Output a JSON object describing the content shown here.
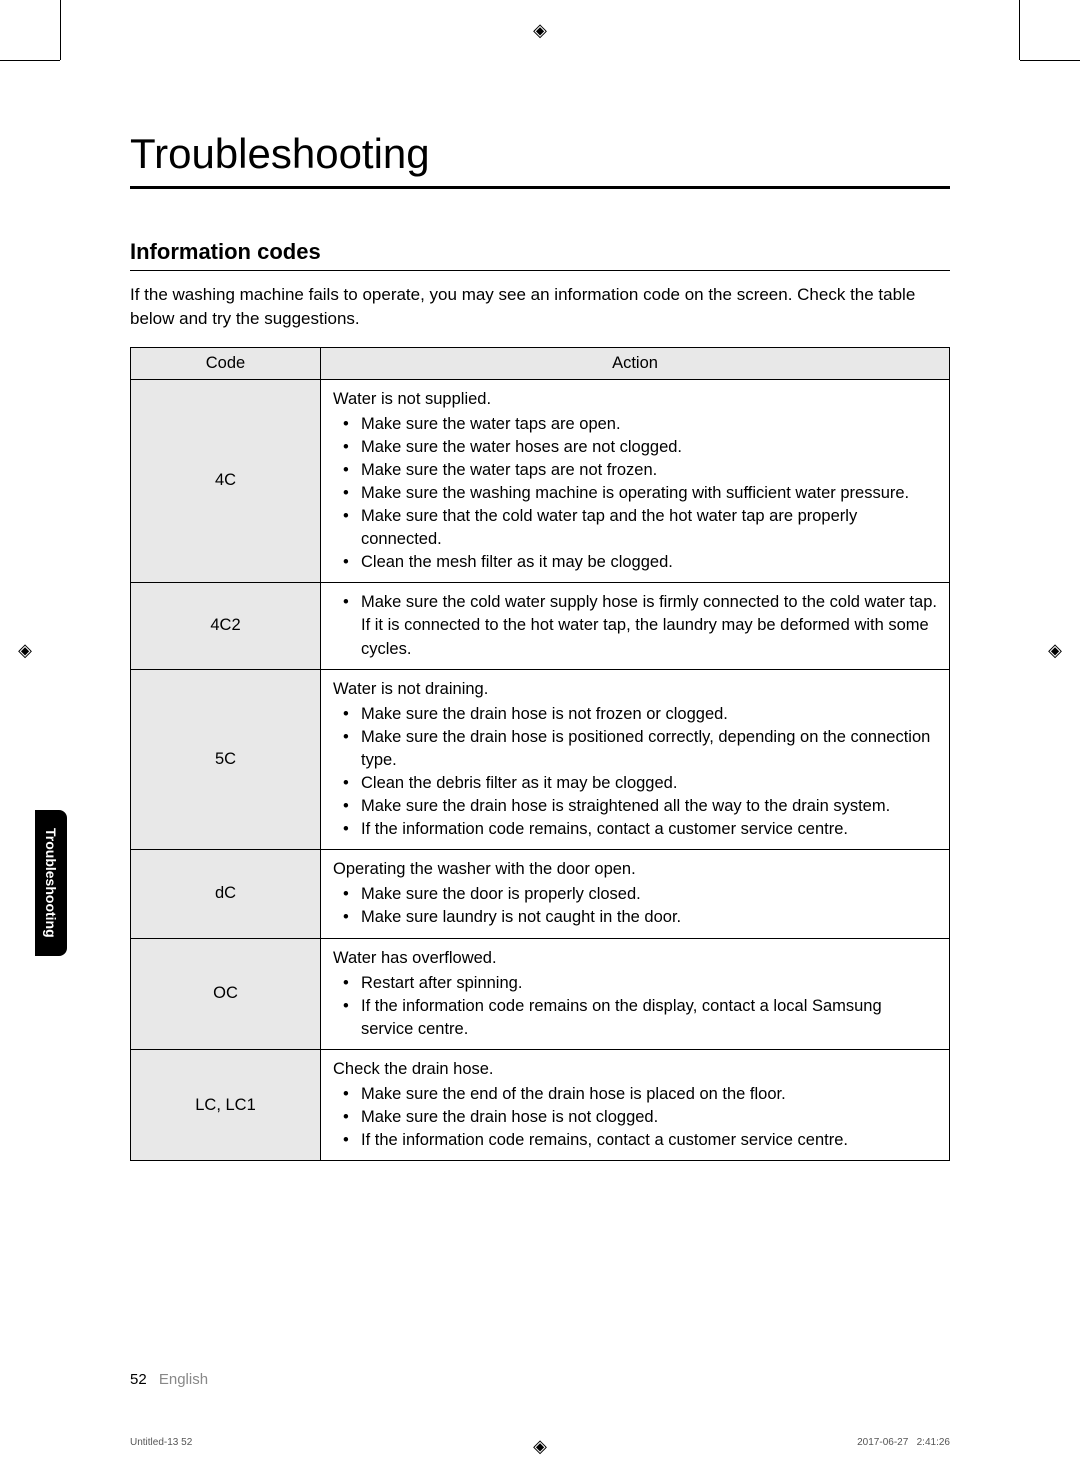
{
  "page": {
    "title": "Troubleshooting",
    "section_title": "Information codes",
    "intro": "If the washing machine fails to operate, you may see an information code on the screen. Check the table below and try the suggestions.",
    "side_tab": "Troubleshooting",
    "page_number": "52",
    "language": "English",
    "print_left": "Untitled-13   52",
    "print_date": "2017-06-27",
    "print_time": "2:41:26"
  },
  "table": {
    "header_code": "Code",
    "header_action": "Action",
    "rows": [
      {
        "code": "4C",
        "heading": "Water is not supplied.",
        "items": [
          "Make sure the water taps are open.",
          "Make sure the water hoses are not clogged.",
          "Make sure the water taps are not frozen.",
          "Make sure the washing machine is operating with sufficient water pressure.",
          "Make sure that the cold water tap and the hot water tap are properly connected.",
          "Clean the mesh filter as it may be clogged."
        ]
      },
      {
        "code": "4C2",
        "heading": "",
        "items": [
          "Make sure the cold water supply hose is firmly connected to the cold water tap. If it is connected to the hot water tap, the laundry may be deformed with some cycles."
        ]
      },
      {
        "code": "5C",
        "heading": "Water is not draining.",
        "items": [
          "Make sure the drain hose is not frozen or clogged.",
          "Make sure the drain hose is positioned correctly, depending on the connection type.",
          "Clean the debris filter as it may be clogged.",
          "Make sure the drain hose is straightened all the way to the drain system.",
          "If the information code remains, contact a customer service centre."
        ]
      },
      {
        "code": "dC",
        "heading": "Operating the washer with the door open.",
        "items": [
          "Make sure the door is properly closed.",
          "Make sure laundry is not caught in the door."
        ]
      },
      {
        "code": "OC",
        "heading": "Water has overflowed.",
        "items": [
          "Restart after spinning.",
          "If the information code remains on the display, contact a local Samsung service centre."
        ]
      },
      {
        "code": "LC, LC1",
        "heading": "Check the drain hose.",
        "items": [
          "Make sure the end of the drain hose is placed on the floor.",
          "Make sure the drain hose is not clogged.",
          "If the information code remains, contact a customer service centre."
        ]
      }
    ]
  },
  "colors": {
    "header_bg": "#e8e8e8",
    "text": "#000000",
    "lang": "#888888"
  },
  "typography": {
    "title_size_pt": 32,
    "section_size_pt": 17,
    "body_size_pt": 12
  }
}
